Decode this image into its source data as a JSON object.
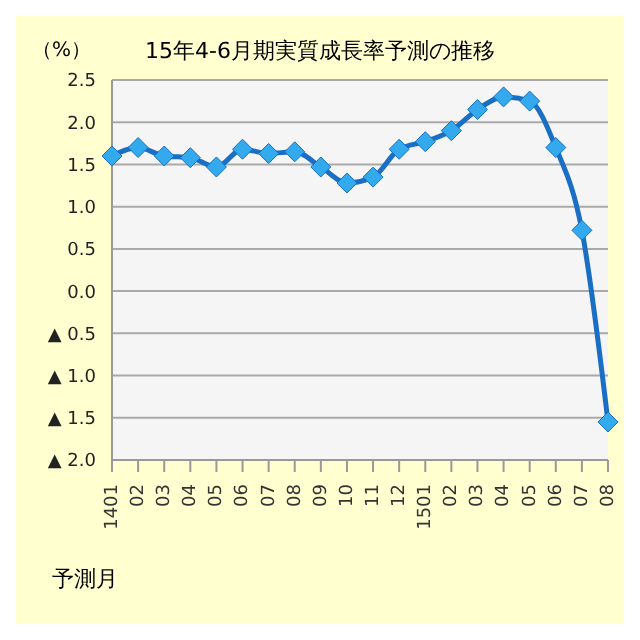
{
  "chart_data": {
    "type": "line",
    "title": "15年4-6月期実質成長率予測の推移",
    "ylabel": "（%）",
    "xlabel": "予測月",
    "categories": [
      "1401",
      "02",
      "03",
      "04",
      "05",
      "06",
      "07",
      "08",
      "09",
      "10",
      "11",
      "12",
      "1501",
      "02",
      "03",
      "04",
      "05",
      "06",
      "07",
      "08"
    ],
    "series": [
      {
        "color": "#1a6fc4",
        "values": [
          1.6,
          1.7,
          1.6,
          1.58,
          1.47,
          1.68,
          1.63,
          1.65,
          1.47,
          1.28,
          1.35,
          1.68,
          1.77,
          1.9,
          2.15,
          2.3,
          2.25,
          1.7,
          0.72,
          -1.55
        ]
      }
    ],
    "ylim": [
      -2,
      2.5
    ],
    "yticks": [
      {
        "value": -2,
        "label": "▲ 2.0"
      },
      {
        "value": -1.5,
        "label": "▲ 1.5"
      },
      {
        "value": -1,
        "label": "▲ 1.0"
      },
      {
        "value": -0.5,
        "label": "▲ 0.5"
      },
      {
        "value": 0,
        "label": "0.0"
      },
      {
        "value": 0.5,
        "label": "0.5"
      },
      {
        "value": 1,
        "label": "1.0"
      },
      {
        "value": 1.5,
        "label": "1.5"
      },
      {
        "value": 2,
        "label": "2.0"
      },
      {
        "value": 2.5,
        "label": "2.5"
      }
    ],
    "grid": "y",
    "marker": "diamond",
    "legend": false
  }
}
